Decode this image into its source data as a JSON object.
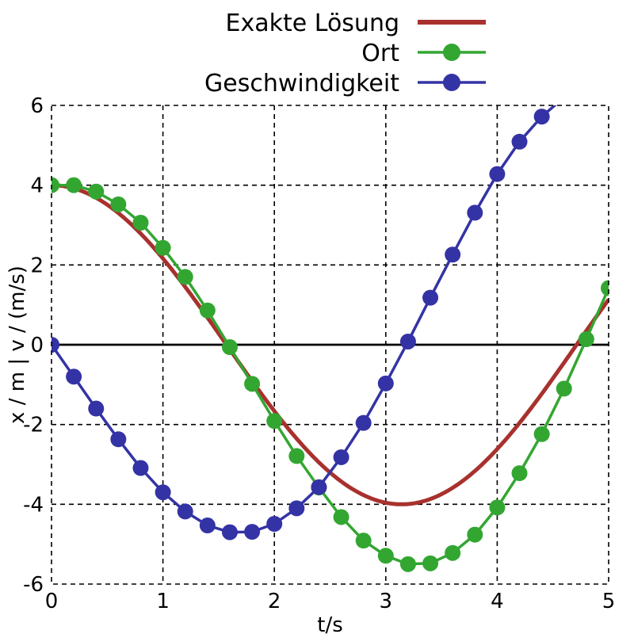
{
  "chart_data": {
    "type": "line",
    "xlabel": "t/s",
    "ylabel": "x / m | v / (m/s)",
    "xlim": [
      0,
      5
    ],
    "ylim": [
      -6,
      6
    ],
    "x_ticks": [
      0,
      1,
      2,
      3,
      4,
      5
    ],
    "y_ticks": [
      -6,
      -4,
      -2,
      0,
      2,
      4,
      6
    ],
    "x_tick_labels": [
      "0",
      "1",
      "2",
      "3",
      "4",
      "5"
    ],
    "y_tick_labels": [
      "-6",
      "-4",
      "-2",
      "0",
      "2",
      "4",
      "6"
    ],
    "grid": true,
    "legend_position": "top-right, outside above plot",
    "series": [
      {
        "name": "Exakte Lösung",
        "color": "#a8312e",
        "style": "line",
        "function": "4*cos(t)",
        "x": [
          0,
          0.25,
          0.5,
          0.75,
          1.0,
          1.25,
          1.5,
          1.75,
          2.0,
          2.25,
          2.5,
          2.75,
          3.0,
          3.14,
          3.25,
          3.5,
          3.75,
          4.0,
          4.25,
          4.5,
          4.75,
          5.0
        ],
        "values": [
          4.0,
          3.88,
          3.51,
          2.93,
          2.16,
          1.26,
          0.28,
          -0.71,
          -1.66,
          -2.51,
          -3.2,
          -3.7,
          -3.96,
          -4.0,
          -3.97,
          -3.75,
          -3.28,
          -2.61,
          -1.78,
          -0.84,
          0.15,
          1.13
        ]
      },
      {
        "name": "Ort",
        "color": "#33a632",
        "style": "line+markers",
        "x": [
          0,
          0.2,
          0.4,
          0.6,
          0.8,
          1.0,
          1.2,
          1.4,
          1.6,
          1.8,
          2.0,
          2.2,
          2.4,
          2.6,
          2.8,
          3.0,
          3.2,
          3.4,
          3.6,
          3.8,
          4.0,
          4.2,
          4.4,
          4.6,
          4.8,
          5.0
        ],
        "values": [
          4.0,
          4.0,
          3.84,
          3.52,
          3.06,
          2.43,
          1.7,
          0.86,
          -0.06,
          -0.98,
          -1.91,
          -2.79,
          -3.58,
          -4.32,
          -4.91,
          -5.29,
          -5.5,
          -5.48,
          -5.22,
          -4.76,
          -4.08,
          -3.22,
          -2.24,
          -1.1,
          0.14,
          1.42
        ]
      },
      {
        "name": "Geschwindigkeit",
        "color": "#3433a5",
        "style": "line+markers",
        "x": [
          0,
          0.2,
          0.4,
          0.6,
          0.8,
          1.0,
          1.2,
          1.4,
          1.6,
          1.8,
          2.0,
          2.2,
          2.4,
          2.6,
          2.8,
          3.0,
          3.2,
          3.4,
          3.6,
          3.8,
          4.0,
          4.2,
          4.4,
          4.6
        ],
        "values": [
          0.0,
          -0.8,
          -1.6,
          -2.37,
          -3.09,
          -3.7,
          -4.18,
          -4.53,
          -4.7,
          -4.69,
          -4.49,
          -4.1,
          -3.57,
          -2.82,
          -1.96,
          -0.97,
          0.08,
          1.18,
          2.26,
          3.31,
          4.28,
          5.09,
          5.72,
          6.2
        ]
      }
    ]
  }
}
